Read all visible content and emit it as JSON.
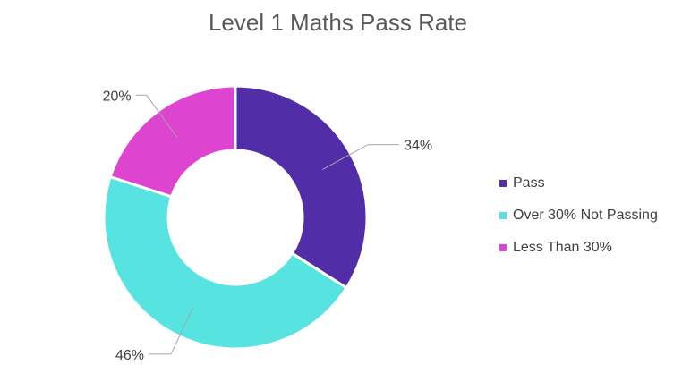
{
  "chart_data": {
    "type": "pie",
    "title": "Level 1 Maths Pass Rate",
    "donut": true,
    "legend_position": "right",
    "slices": [
      {
        "name": "Pass",
        "value": 34,
        "label": "34%",
        "color": "#512DA8"
      },
      {
        "name": "Over 30% Not Passing",
        "value": 46,
        "label": "46%",
        "color": "#57E3E0"
      },
      {
        "name": "Less Than 30%",
        "value": 20,
        "label": "20%",
        "color": "#DD44D0"
      }
    ]
  }
}
